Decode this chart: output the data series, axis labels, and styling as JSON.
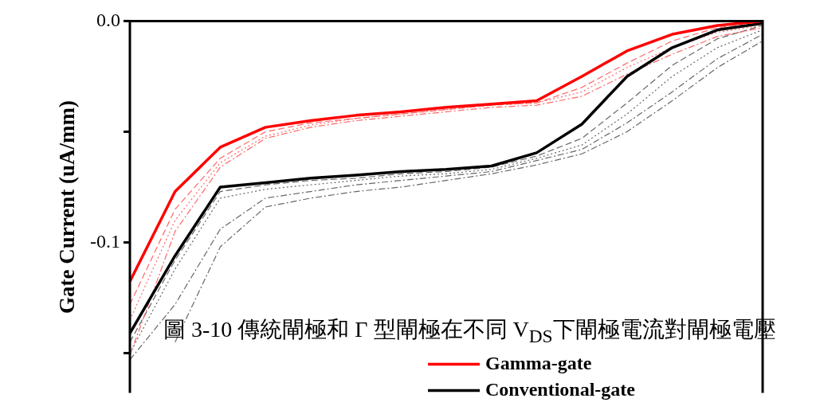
{
  "chart_data": {
    "type": "line",
    "ylabel": "Gate Current (uA/mm)",
    "categories": [
      null,
      null,
      null,
      null,
      null,
      null,
      null,
      null,
      null,
      null,
      null,
      null,
      null,
      null,
      null
    ],
    "ylim": [
      -0.168,
      0
    ],
    "yticks": [
      {
        "value": 0,
        "label": "0.0"
      },
      {
        "value": -0.05,
        "label": null
      },
      {
        "value": -0.1,
        "label": "-0.1"
      },
      {
        "value": -0.15,
        "label": null
      }
    ],
    "tick_labels": "y",
    "grid": false,
    "legend": "bottom right",
    "marker": "none",
    "annotations": [
      "圖 3-10 傳統閘極和 Γ 型閘極在不同 V$_{DS}$下閘極電流對閘極電壓"
    ],
    "series": [
      {
        "color": "#ff6666",
        "line_style": "dashed",
        "values": [
          -0.128,
          -0.085,
          -0.062,
          -0.05,
          -0.046,
          -0.044,
          -0.042,
          -0.04,
          -0.038,
          -0.037,
          -0.03,
          -0.019,
          -0.009,
          -0.003,
          -0.001
        ]
      },
      {
        "color": "#ff6666",
        "line_style": "dotted",
        "values": [
          -0.135,
          -0.09,
          -0.064,
          -0.052,
          -0.047,
          -0.044,
          -0.042,
          -0.04,
          -0.038,
          -0.037,
          -0.032,
          -0.021,
          -0.012,
          -0.005,
          -0.002
        ]
      },
      {
        "color": "#ff6666",
        "line_style": "dashdot",
        "values": [
          -0.151,
          -0.095,
          -0.066,
          -0.053,
          -0.048,
          -0.045,
          -0.043,
          -0.041,
          -0.039,
          -0.038,
          -0.034,
          -0.024,
          -0.015,
          -0.007,
          -0.003
        ]
      },
      {
        "color": "#666666",
        "line_style": "dashed",
        "values": [
          -0.145,
          -0.108,
          -0.077,
          -0.074,
          -0.072,
          -0.071,
          -0.069,
          -0.068,
          -0.066,
          -0.061,
          -0.053,
          -0.037,
          -0.02,
          -0.008,
          -0.002
        ]
      },
      {
        "color": "#666666",
        "line_style": "dotted",
        "values": [
          -0.15,
          -0.112,
          -0.08,
          -0.076,
          -0.074,
          -0.072,
          -0.07,
          -0.069,
          -0.067,
          -0.062,
          -0.056,
          -0.042,
          -0.025,
          -0.012,
          -0.004
        ]
      },
      {
        "color": "#666666",
        "line_style": "dashdot",
        "values": [
          -0.153,
          -0.128,
          -0.094,
          -0.08,
          -0.077,
          -0.074,
          -0.072,
          -0.07,
          -0.068,
          -0.063,
          -0.058,
          -0.046,
          -0.032,
          -0.017,
          -0.006
        ]
      },
      {
        "color": "#666666",
        "line_style": "dashdot",
        "values": [
          null,
          -0.145,
          -0.102,
          -0.084,
          -0.08,
          -0.077,
          -0.075,
          -0.072,
          -0.069,
          -0.065,
          -0.06,
          -0.05,
          -0.036,
          -0.021,
          -0.009
        ]
      },
      {
        "name": "Gamma-gate",
        "color": "#ff0000",
        "line_style": "solid",
        "values": [
          -0.1176,
          -0.077,
          -0.057,
          -0.048,
          -0.045,
          -0.0426,
          -0.041,
          -0.039,
          -0.0375,
          -0.036,
          -0.025,
          -0.0135,
          -0.006,
          -0.002,
          0
        ]
      },
      {
        "name": "Conventional-gate",
        "color": "#000000",
        "line_style": "solid",
        "values": [
          -0.141,
          -0.106,
          -0.075,
          -0.073,
          -0.071,
          -0.0696,
          -0.068,
          -0.067,
          -0.0655,
          -0.0595,
          -0.0466,
          -0.025,
          -0.012,
          -0.004,
          -0.001
        ]
      }
    ]
  }
}
